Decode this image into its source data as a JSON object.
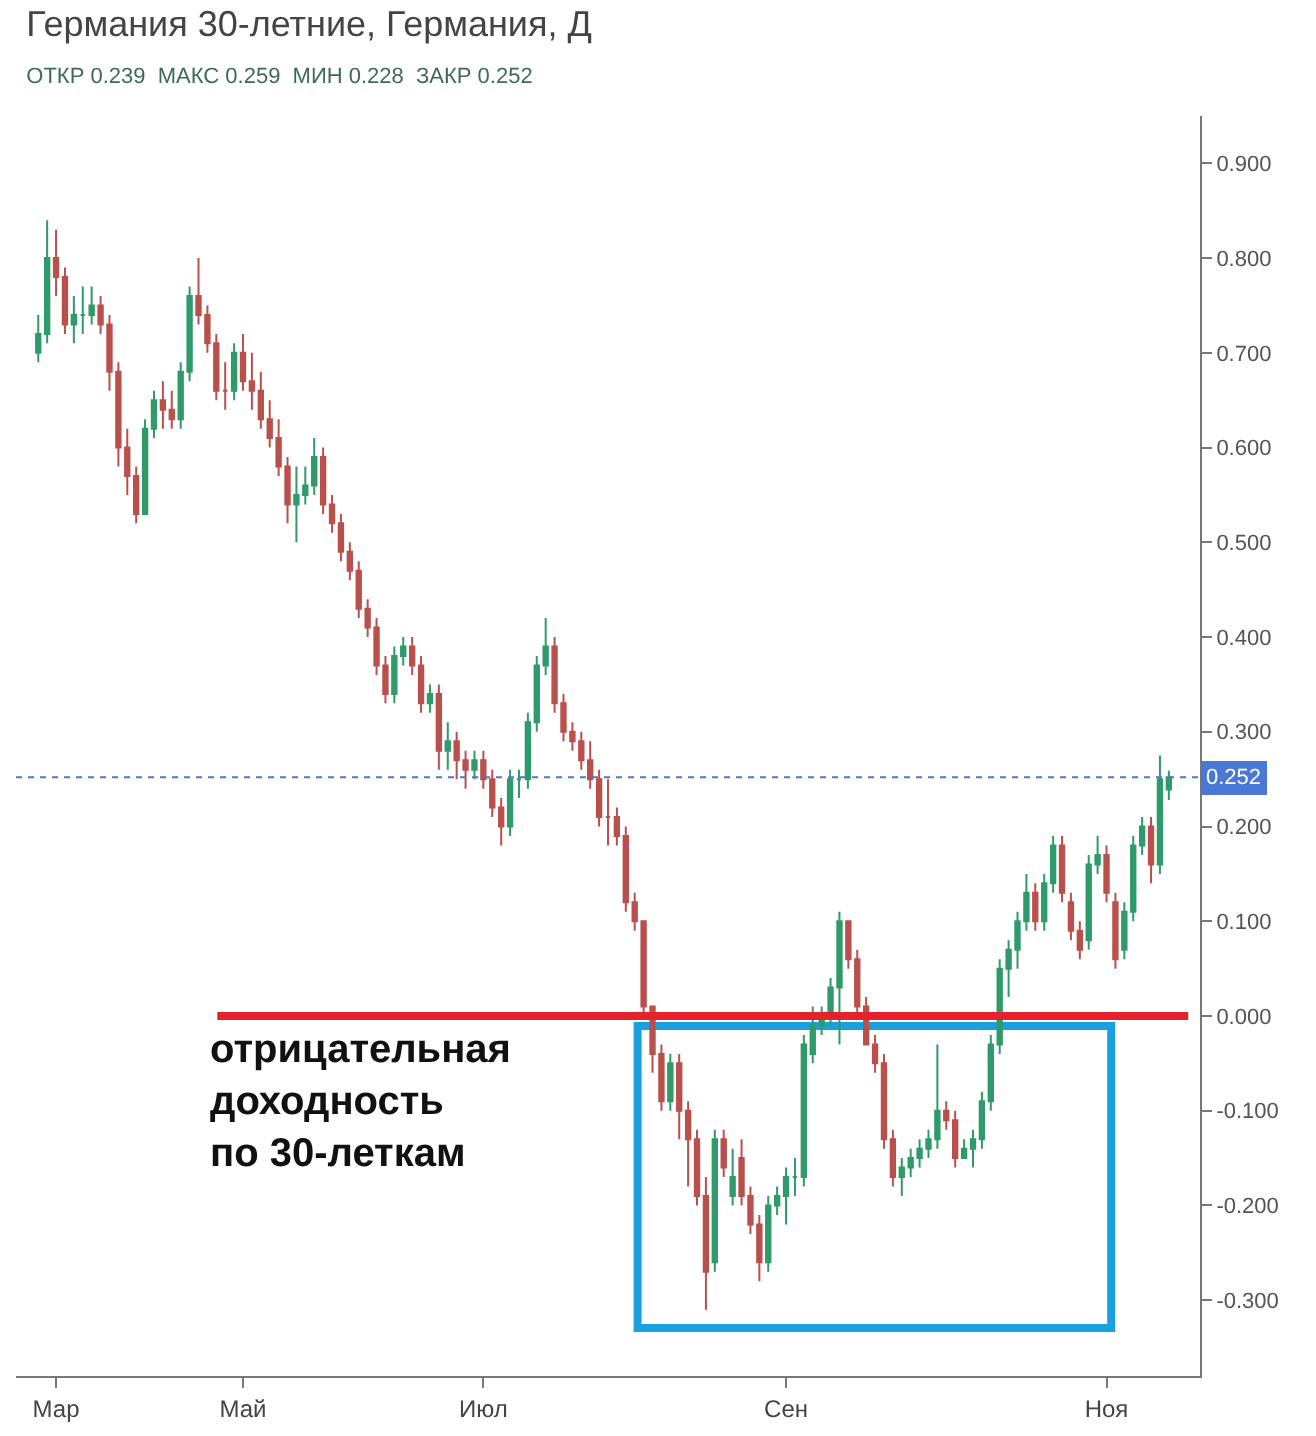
{
  "chart_data": {
    "type": "candlestick",
    "title": "Германия 30-летние, Германия, Д",
    "subtitle": "ОТКР 0.239  МАКС 0.259  МИН 0.228  ЗАКР 0.252",
    "annotations": [
      "отрицательная\nдоходность\nпо 30-леткам"
    ],
    "categories": [
      null,
      null,
      "Мар",
      null,
      null,
      null,
      null,
      null,
      null,
      null,
      null,
      null,
      null,
      null,
      null,
      null,
      null,
      null,
      null,
      null,
      null,
      null,
      null,
      "Май",
      null,
      null,
      null,
      null,
      null,
      null,
      null,
      null,
      null,
      null,
      null,
      null,
      null,
      null,
      null,
      null,
      null,
      null,
      null,
      null,
      null,
      null,
      null,
      null,
      null,
      null,
      "Июл",
      null,
      null,
      null,
      null,
      null,
      null,
      null,
      null,
      null,
      null,
      null,
      null,
      null,
      null,
      null,
      null,
      null,
      null,
      null,
      null,
      null,
      null,
      null,
      null,
      null,
      null,
      null,
      null,
      null,
      null,
      null,
      null,
      null,
      "Сен",
      null,
      null,
      null,
      null,
      null,
      null,
      null,
      null,
      null,
      null,
      null,
      null,
      null,
      null,
      null,
      null,
      null,
      null,
      null,
      null,
      null,
      null,
      null,
      null,
      null,
      null,
      null,
      null,
      null,
      null,
      null,
      null,
      null,
      null,
      null,
      "Ноя",
      null,
      null,
      null,
      null,
      null,
      null,
      null
    ],
    "ohlc": [
      [
        0.7,
        0.74,
        0.69,
        0.72
      ],
      [
        0.72,
        0.84,
        0.71,
        0.8
      ],
      [
        0.8,
        0.83,
        0.76,
        0.78
      ],
      [
        0.78,
        0.79,
        0.72,
        0.73
      ],
      [
        0.73,
        0.76,
        0.71,
        0.74
      ],
      [
        0.74,
        0.77,
        0.72,
        0.74
      ],
      [
        0.74,
        0.77,
        0.73,
        0.75
      ],
      [
        0.75,
        0.76,
        0.72,
        0.73
      ],
      [
        0.73,
        0.74,
        0.66,
        0.68
      ],
      [
        0.68,
        0.69,
        0.58,
        0.6
      ],
      [
        0.6,
        0.62,
        0.55,
        0.57
      ],
      [
        0.57,
        0.58,
        0.52,
        0.53
      ],
      [
        0.53,
        0.63,
        0.53,
        0.62
      ],
      [
        0.62,
        0.66,
        0.61,
        0.65
      ],
      [
        0.65,
        0.67,
        0.62,
        0.64
      ],
      [
        0.64,
        0.66,
        0.62,
        0.63
      ],
      [
        0.63,
        0.69,
        0.62,
        0.68
      ],
      [
        0.68,
        0.77,
        0.67,
        0.76
      ],
      [
        0.76,
        0.8,
        0.73,
        0.74
      ],
      [
        0.74,
        0.75,
        0.7,
        0.71
      ],
      [
        0.71,
        0.72,
        0.65,
        0.66
      ],
      [
        0.66,
        0.69,
        0.64,
        0.66
      ],
      [
        0.66,
        0.71,
        0.65,
        0.7
      ],
      [
        0.7,
        0.72,
        0.66,
        0.67
      ],
      [
        0.67,
        0.7,
        0.64,
        0.66
      ],
      [
        0.66,
        0.68,
        0.62,
        0.63
      ],
      [
        0.63,
        0.65,
        0.6,
        0.61
      ],
      [
        0.61,
        0.63,
        0.57,
        0.58
      ],
      [
        0.58,
        0.59,
        0.52,
        0.54
      ],
      [
        0.54,
        0.58,
        0.5,
        0.55
      ],
      [
        0.55,
        0.58,
        0.54,
        0.56
      ],
      [
        0.56,
        0.61,
        0.55,
        0.59
      ],
      [
        0.59,
        0.6,
        0.53,
        0.54
      ],
      [
        0.54,
        0.55,
        0.51,
        0.52
      ],
      [
        0.52,
        0.53,
        0.48,
        0.49
      ],
      [
        0.49,
        0.5,
        0.46,
        0.47
      ],
      [
        0.47,
        0.48,
        0.42,
        0.43
      ],
      [
        0.43,
        0.44,
        0.4,
        0.41
      ],
      [
        0.41,
        0.42,
        0.36,
        0.37
      ],
      [
        0.37,
        0.38,
        0.33,
        0.34
      ],
      [
        0.34,
        0.39,
        0.33,
        0.38
      ],
      [
        0.38,
        0.4,
        0.37,
        0.39
      ],
      [
        0.39,
        0.4,
        0.36,
        0.37
      ],
      [
        0.37,
        0.38,
        0.32,
        0.33
      ],
      [
        0.33,
        0.35,
        0.32,
        0.34
      ],
      [
        0.34,
        0.35,
        0.26,
        0.28
      ],
      [
        0.28,
        0.31,
        0.26,
        0.29
      ],
      [
        0.29,
        0.3,
        0.25,
        0.27
      ],
      [
        0.27,
        0.28,
        0.24,
        0.26
      ],
      [
        0.26,
        0.28,
        0.25,
        0.27
      ],
      [
        0.27,
        0.28,
        0.24,
        0.25
      ],
      [
        0.25,
        0.26,
        0.21,
        0.22
      ],
      [
        0.22,
        0.23,
        0.18,
        0.2
      ],
      [
        0.2,
        0.26,
        0.19,
        0.25
      ],
      [
        0.25,
        0.26,
        0.23,
        0.25
      ],
      [
        0.25,
        0.32,
        0.24,
        0.31
      ],
      [
        0.31,
        0.38,
        0.3,
        0.37
      ],
      [
        0.37,
        0.42,
        0.36,
        0.39
      ],
      [
        0.39,
        0.4,
        0.32,
        0.33
      ],
      [
        0.33,
        0.34,
        0.29,
        0.3
      ],
      [
        0.3,
        0.31,
        0.28,
        0.29
      ],
      [
        0.29,
        0.3,
        0.26,
        0.27
      ],
      [
        0.27,
        0.29,
        0.24,
        0.25
      ],
      [
        0.25,
        0.26,
        0.2,
        0.21
      ],
      [
        0.21,
        0.25,
        0.18,
        0.21
      ],
      [
        0.21,
        0.22,
        0.18,
        0.19
      ],
      [
        0.19,
        0.2,
        0.11,
        0.12
      ],
      [
        0.12,
        0.13,
        0.09,
        0.1
      ],
      [
        0.1,
        0.1,
        0.0,
        0.01
      ],
      [
        0.01,
        0.01,
        -0.06,
        -0.04
      ],
      [
        -0.04,
        -0.03,
        -0.1,
        -0.09
      ],
      [
        -0.09,
        -0.04,
        -0.1,
        -0.05
      ],
      [
        -0.05,
        -0.04,
        -0.13,
        -0.1
      ],
      [
        -0.1,
        -0.09,
        -0.18,
        -0.13
      ],
      [
        -0.13,
        -0.12,
        -0.2,
        -0.19
      ],
      [
        -0.19,
        -0.17,
        -0.31,
        -0.27
      ],
      [
        -0.26,
        -0.12,
        -0.27,
        -0.13
      ],
      [
        -0.13,
        -0.12,
        -0.17,
        -0.16
      ],
      [
        -0.19,
        -0.14,
        -0.2,
        -0.17
      ],
      [
        -0.15,
        -0.13,
        -0.2,
        -0.19
      ],
      [
        -0.19,
        -0.18,
        -0.23,
        -0.22
      ],
      [
        -0.22,
        -0.21,
        -0.28,
        -0.26
      ],
      [
        -0.26,
        -0.19,
        -0.27,
        -0.2
      ],
      [
        -0.2,
        -0.18,
        -0.21,
        -0.19
      ],
      [
        -0.19,
        -0.16,
        -0.22,
        -0.17
      ],
      [
        -0.17,
        -0.15,
        -0.19,
        -0.17
      ],
      [
        -0.17,
        -0.02,
        -0.18,
        -0.03
      ],
      [
        -0.04,
        0.01,
        -0.05,
        -0.01
      ],
      [
        -0.01,
        0.01,
        -0.02,
        0.0
      ],
      [
        0.0,
        0.04,
        -0.01,
        0.03
      ],
      [
        0.03,
        0.11,
        -0.03,
        0.1
      ],
      [
        0.1,
        0.1,
        0.05,
        0.06
      ],
      [
        0.06,
        0.07,
        0.0,
        0.01
      ],
      [
        0.01,
        0.02,
        -0.03,
        -0.03
      ],
      [
        -0.03,
        -0.02,
        -0.06,
        -0.05
      ],
      [
        -0.05,
        -0.04,
        -0.14,
        -0.13
      ],
      [
        -0.13,
        -0.12,
        -0.18,
        -0.17
      ],
      [
        -0.17,
        -0.15,
        -0.19,
        -0.16
      ],
      [
        -0.16,
        -0.14,
        -0.17,
        -0.15
      ],
      [
        -0.15,
        -0.13,
        -0.16,
        -0.14
      ],
      [
        -0.14,
        -0.12,
        -0.15,
        -0.13
      ],
      [
        -0.13,
        -0.03,
        -0.14,
        -0.1
      ],
      [
        -0.1,
        -0.09,
        -0.12,
        -0.11
      ],
      [
        -0.11,
        -0.1,
        -0.16,
        -0.15
      ],
      [
        -0.15,
        -0.13,
        -0.15,
        -0.14
      ],
      [
        -0.14,
        -0.12,
        -0.16,
        -0.13
      ],
      [
        -0.13,
        -0.08,
        -0.14,
        -0.09
      ],
      [
        -0.09,
        -0.02,
        -0.1,
        -0.03
      ],
      [
        -0.03,
        0.06,
        -0.04,
        0.05
      ],
      [
        0.05,
        0.08,
        0.02,
        0.07
      ],
      [
        0.07,
        0.11,
        0.05,
        0.1
      ],
      [
        0.1,
        0.15,
        0.09,
        0.13
      ],
      [
        0.13,
        0.14,
        0.09,
        0.1
      ],
      [
        0.1,
        0.15,
        0.09,
        0.14
      ],
      [
        0.14,
        0.19,
        0.13,
        0.18
      ],
      [
        0.18,
        0.19,
        0.12,
        0.13
      ],
      [
        0.12,
        0.13,
        0.08,
        0.09
      ],
      [
        0.09,
        0.1,
        0.06,
        0.07
      ],
      [
        0.08,
        0.17,
        0.07,
        0.16
      ],
      [
        0.16,
        0.19,
        0.15,
        0.17
      ],
      [
        0.17,
        0.18,
        0.12,
        0.13
      ],
      [
        0.12,
        0.13,
        0.05,
        0.06
      ],
      [
        0.07,
        0.12,
        0.06,
        0.11
      ],
      [
        0.11,
        0.19,
        0.1,
        0.18
      ],
      [
        0.18,
        0.21,
        0.17,
        0.2
      ],
      [
        0.2,
        0.21,
        0.14,
        0.16
      ],
      [
        0.16,
        0.275,
        0.15,
        0.25
      ],
      [
        0.239,
        0.259,
        0.228,
        0.252
      ]
    ],
    "ylim": [
      -0.38,
      0.95
    ],
    "yticks": [
      {
        "value": 0.9,
        "label": "0.900"
      },
      {
        "value": 0.8,
        "label": "0.800"
      },
      {
        "value": 0.7,
        "label": "0.700"
      },
      {
        "value": 0.6,
        "label": "0.600"
      },
      {
        "value": 0.5,
        "label": "0.500"
      },
      {
        "value": 0.4,
        "label": "0.400"
      },
      {
        "value": 0.3,
        "label": "0.300"
      },
      {
        "value": 0.2,
        "label": "0.200"
      },
      {
        "value": 0.1,
        "label": "0.100"
      },
      {
        "value": 0.0,
        "label": "0.000"
      },
      {
        "value": -0.1,
        "label": "-0.100"
      },
      {
        "value": -0.2,
        "label": "-0.200"
      },
      {
        "value": -0.3,
        "label": "-0.300"
      }
    ],
    "ref_lines": [
      {
        "axis": "y",
        "value": 0.0,
        "color": "#e3222b",
        "line_style": "solid"
      },
      {
        "axis": "y",
        "value": 0.252,
        "label": "0.252",
        "color": "#4a78d4",
        "line_style": "dotted"
      }
    ],
    "grid": false
  }
}
